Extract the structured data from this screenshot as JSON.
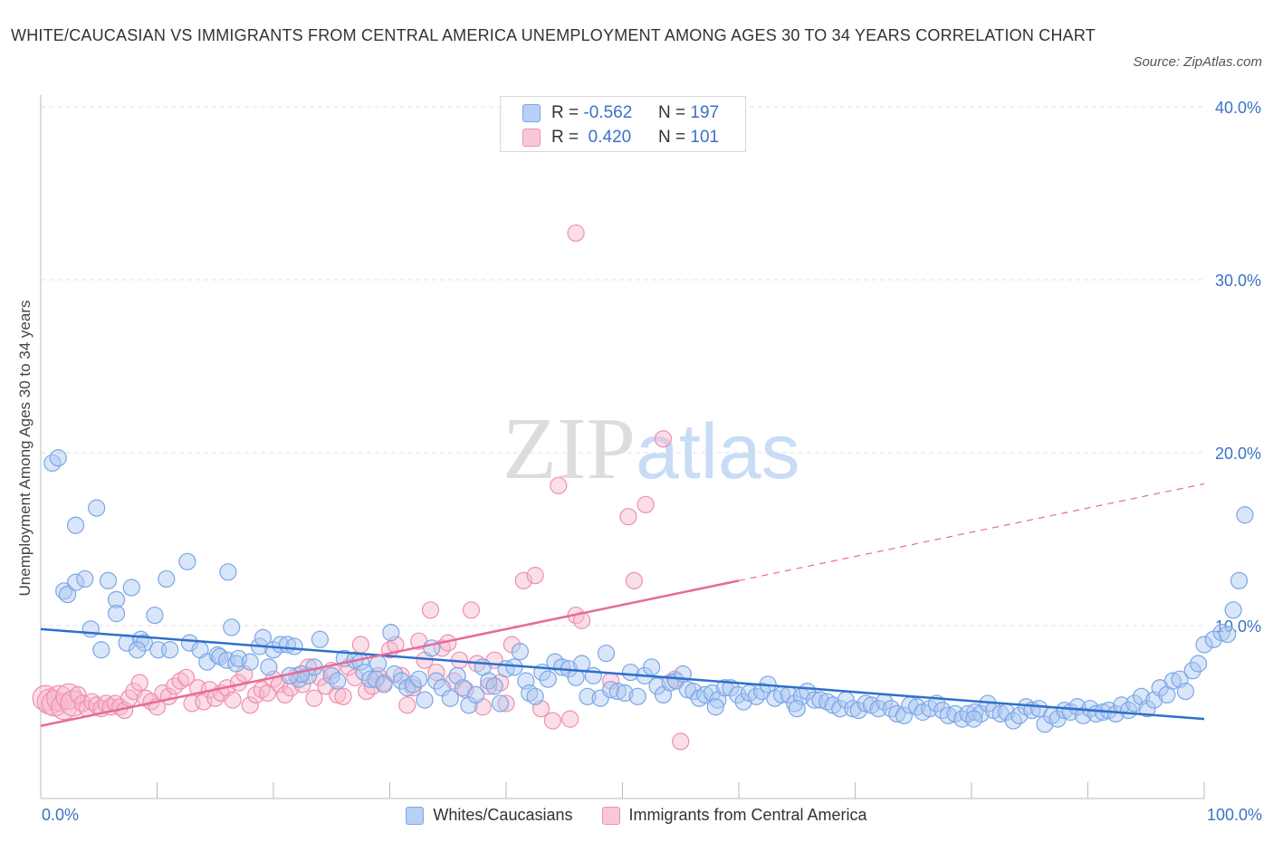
{
  "title": "WHITE/CAUCASIAN VS IMMIGRANTS FROM CENTRAL AMERICA UNEMPLOYMENT AMONG AGES 30 TO 34 YEARS CORRELATION CHART",
  "source": "Source: ZipAtlas.com",
  "watermark": {
    "part1": "ZIP",
    "part2": "atlas"
  },
  "colors": {
    "blue_fill": "#aac7f2",
    "blue_stroke": "#7aa6e6",
    "blue_line": "#2f6fca",
    "pink_fill": "#f7b8cb",
    "pink_stroke": "#ee8fae",
    "pink_line": "#e86a94",
    "axis_text": "#3b72c8",
    "grid": "#e2e2e2"
  },
  "legend": {
    "rows": [
      {
        "r_label": "R =",
        "r_value": "-0.562",
        "n_label": "N =",
        "n_value": "197"
      },
      {
        "r_label": "R =",
        "r_value": "0.420",
        "n_label": "N =",
        "n_value": "101"
      }
    ]
  },
  "bottom_legend": [
    "Whites/Caucasians",
    "Immigrants from Central America"
  ],
  "chart_data": {
    "type": "scatter",
    "title": "WHITE/CAUCASIAN VS IMMIGRANTS FROM CENTRAL AMERICA UNEMPLOYMENT AMONG AGES 30 TO 34 YEARS CORRELATION CHART",
    "xlabel": "",
    "ylabel": "Unemployment Among Ages 30 to 34 years",
    "xlim": [
      0,
      100
    ],
    "ylim": [
      0,
      40
    ],
    "x_tick_labels": [
      "0.0%",
      "100.0%"
    ],
    "y_ticks": [
      10,
      20,
      30,
      40
    ],
    "y_tick_labels": [
      "10.0%",
      "20.0%",
      "30.0%",
      "40.0%"
    ],
    "grid": true,
    "legend_position": "top-center",
    "series": [
      {
        "name": "Whites/Caucasians",
        "r": -0.562,
        "n": 197,
        "trend": {
          "x0": 0,
          "y0": 9.8,
          "x1": 100,
          "y1": 4.6
        },
        "points": [
          [
            1,
            19.4
          ],
          [
            1.5,
            19.7
          ],
          [
            3,
            15.8
          ],
          [
            4.8,
            16.8
          ],
          [
            2,
            12
          ],
          [
            2.3,
            11.8
          ],
          [
            3,
            12.5
          ],
          [
            3.8,
            12.7
          ],
          [
            5.8,
            12.6
          ],
          [
            7.8,
            12.2
          ],
          [
            6.5,
            11.5
          ],
          [
            6.5,
            10.7
          ],
          [
            9.8,
            10.6
          ],
          [
            4.3,
            9.8
          ],
          [
            5.2,
            8.6
          ],
          [
            7.4,
            9.0
          ],
          [
            8.6,
            9.2
          ],
          [
            8.9,
            9.0
          ],
          [
            8.3,
            8.6
          ],
          [
            10.1,
            8.6
          ],
          [
            11.1,
            8.6
          ],
          [
            12.8,
            9.0
          ],
          [
            13.7,
            8.6
          ],
          [
            14.3,
            7.9
          ],
          [
            15.2,
            8.3
          ],
          [
            15.4,
            8.2
          ],
          [
            16.4,
            9.9
          ],
          [
            16.0,
            8.0
          ],
          [
            16.8,
            7.8
          ],
          [
            17.0,
            8.1
          ],
          [
            16.1,
            13.1
          ],
          [
            12.6,
            13.7
          ],
          [
            10.8,
            12.7
          ],
          [
            18.0,
            7.9
          ],
          [
            18.8,
            8.8
          ],
          [
            19.1,
            9.3
          ],
          [
            19.6,
            7.6
          ],
          [
            20.0,
            8.6
          ],
          [
            20.6,
            8.9
          ],
          [
            21.2,
            8.9
          ],
          [
            21.8,
            8.8
          ],
          [
            22.2,
            6.9
          ],
          [
            23.0,
            7.1
          ],
          [
            23.5,
            7.6
          ],
          [
            22.4,
            7.2
          ],
          [
            21.4,
            7.1
          ],
          [
            24.0,
            9.2
          ],
          [
            25.0,
            7.1
          ],
          [
            25.5,
            6.8
          ],
          [
            26.1,
            8.1
          ],
          [
            27.0,
            8.0
          ],
          [
            27.5,
            7.9
          ],
          [
            27.8,
            7.3
          ],
          [
            28.3,
            6.9
          ],
          [
            28.8,
            6.9
          ],
          [
            29.0,
            7.8
          ],
          [
            29.5,
            6.6
          ],
          [
            30.1,
            9.6
          ],
          [
            30.4,
            7.2
          ],
          [
            31.0,
            6.8
          ],
          [
            31.5,
            6.4
          ],
          [
            32.0,
            6.6
          ],
          [
            32.5,
            6.9
          ],
          [
            33.0,
            5.7
          ],
          [
            33.6,
            8.7
          ],
          [
            34.0,
            6.8
          ],
          [
            34.5,
            6.4
          ],
          [
            35.2,
            5.8
          ],
          [
            35.8,
            7.1
          ],
          [
            36.3,
            6.4
          ],
          [
            36.8,
            5.4
          ],
          [
            37.4,
            6.0
          ],
          [
            38.0,
            7.6
          ],
          [
            38.5,
            6.8
          ],
          [
            39.0,
            6.5
          ],
          [
            39.5,
            5.5
          ],
          [
            40.0,
            7.5
          ],
          [
            40.7,
            7.6
          ],
          [
            41.2,
            8.5
          ],
          [
            41.7,
            6.8
          ],
          [
            42.0,
            6.1
          ],
          [
            42.5,
            5.9
          ],
          [
            43.1,
            7.3
          ],
          [
            43.6,
            6.9
          ],
          [
            44.2,
            7.9
          ],
          [
            44.8,
            7.6
          ],
          [
            45.4,
            7.5
          ],
          [
            46.0,
            7.0
          ],
          [
            46.5,
            7.8
          ],
          [
            47.0,
            5.9
          ],
          [
            47.5,
            7.1
          ],
          [
            48.1,
            5.8
          ],
          [
            48.6,
            8.4
          ],
          [
            49.0,
            6.3
          ],
          [
            49.6,
            6.2
          ],
          [
            50.2,
            6.1
          ],
          [
            50.7,
            7.3
          ],
          [
            51.3,
            5.9
          ],
          [
            51.9,
            7.1
          ],
          [
            52.5,
            7.6
          ],
          [
            53.0,
            6.5
          ],
          [
            53.5,
            6.0
          ],
          [
            54.1,
            6.7
          ],
          [
            54.6,
            6.8
          ],
          [
            55.2,
            7.2
          ],
          [
            55.6,
            6.3
          ],
          [
            56.1,
            6.2
          ],
          [
            56.6,
            5.8
          ],
          [
            57.1,
            6.0
          ],
          [
            57.7,
            6.1
          ],
          [
            58.2,
            5.7
          ],
          [
            58.8,
            6.4
          ],
          [
            59.3,
            6.4
          ],
          [
            59.9,
            6.0
          ],
          [
            60.4,
            5.6
          ],
          [
            60.9,
            6.1
          ],
          [
            61.5,
            5.9
          ],
          [
            62.0,
            6.2
          ],
          [
            62.5,
            6.6
          ],
          [
            63.1,
            5.8
          ],
          [
            63.7,
            6.0
          ],
          [
            64.3,
            6.0
          ],
          [
            64.8,
            5.5
          ],
          [
            65.4,
            5.9
          ],
          [
            65.9,
            6.2
          ],
          [
            66.5,
            5.7
          ],
          [
            67.0,
            5.7
          ],
          [
            67.6,
            5.6
          ],
          [
            68.1,
            5.4
          ],
          [
            68.7,
            5.2
          ],
          [
            69.2,
            5.7
          ],
          [
            69.8,
            5.2
          ],
          [
            70.3,
            5.1
          ],
          [
            70.9,
            5.5
          ],
          [
            71.4,
            5.4
          ],
          [
            72.0,
            5.2
          ],
          [
            72.5,
            5.6
          ],
          [
            73.1,
            5.2
          ],
          [
            73.6,
            4.9
          ],
          [
            74.2,
            4.8
          ],
          [
            74.7,
            5.4
          ],
          [
            75.3,
            5.3
          ],
          [
            75.8,
            5.0
          ],
          [
            76.4,
            5.2
          ],
          [
            77.0,
            5.5
          ],
          [
            77.5,
            5.1
          ],
          [
            78.0,
            4.8
          ],
          [
            78.6,
            4.9
          ],
          [
            79.2,
            4.6
          ],
          [
            79.7,
            4.9
          ],
          [
            80.3,
            5.0
          ],
          [
            80.8,
            4.9
          ],
          [
            81.4,
            5.5
          ],
          [
            81.9,
            5.1
          ],
          [
            82.5,
            4.9
          ],
          [
            83.0,
            5.0
          ],
          [
            83.6,
            4.5
          ],
          [
            84.1,
            4.8
          ],
          [
            84.7,
            5.3
          ],
          [
            85.2,
            5.1
          ],
          [
            85.8,
            5.2
          ],
          [
            86.3,
            4.3
          ],
          [
            86.9,
            4.8
          ],
          [
            87.4,
            4.6
          ],
          [
            88.0,
            5.1
          ],
          [
            88.5,
            5.0
          ],
          [
            89.1,
            5.3
          ],
          [
            89.6,
            4.8
          ],
          [
            90.2,
            5.2
          ],
          [
            90.7,
            4.9
          ],
          [
            91.3,
            5.0
          ],
          [
            91.8,
            5.1
          ],
          [
            92.4,
            4.9
          ],
          [
            92.9,
            5.4
          ],
          [
            93.5,
            5.1
          ],
          [
            94.0,
            5.5
          ],
          [
            94.6,
            5.9
          ],
          [
            95.1,
            5.2
          ],
          [
            95.7,
            5.7
          ],
          [
            96.2,
            6.4
          ],
          [
            96.8,
            6.0
          ],
          [
            97.3,
            6.8
          ],
          [
            97.9,
            6.9
          ],
          [
            98.4,
            6.2
          ],
          [
            99.0,
            7.4
          ],
          [
            99.5,
            7.8
          ],
          [
            100.0,
            8.9
          ],
          [
            100.8,
            9.2
          ],
          [
            101.5,
            9.6
          ],
          [
            102.0,
            9.5
          ],
          [
            102.5,
            10.9
          ],
          [
            103.0,
            12.6
          ],
          [
            103.5,
            16.4
          ],
          [
            80.2,
            4.6
          ],
          [
            65.0,
            5.2
          ],
          [
            58.0,
            5.3
          ]
        ]
      },
      {
        "name": "Immigrants from Central America",
        "r": 0.42,
        "n": 101,
        "trend": {
          "x0": 0,
          "y0": 4.2,
          "x1": 60,
          "y1": 12.6,
          "dash_x1": 100,
          "dash_y1": 18.2
        },
        "points": [
          [
            0.4,
            5.8
          ],
          [
            0.8,
            5.6
          ],
          [
            1.2,
            5.5
          ],
          [
            1.6,
            5.8
          ],
          [
            2.0,
            5.3
          ],
          [
            2.4,
            5.9
          ],
          [
            2.8,
            5.5
          ],
          [
            3.2,
            6.0
          ],
          [
            3.6,
            5.5
          ],
          [
            4.0,
            5.2
          ],
          [
            4.4,
            5.6
          ],
          [
            4.8,
            5.4
          ],
          [
            5.2,
            5.2
          ],
          [
            5.6,
            5.5
          ],
          [
            6.0,
            5.3
          ],
          [
            6.4,
            5.5
          ],
          [
            6.8,
            5.3
          ],
          [
            7.2,
            5.1
          ],
          [
            7.6,
            5.8
          ],
          [
            8.0,
            6.2
          ],
          [
            8.5,
            6.7
          ],
          [
            9.0,
            5.8
          ],
          [
            9.5,
            5.6
          ],
          [
            10.0,
            5.3
          ],
          [
            10.5,
            6.1
          ],
          [
            11.0,
            5.9
          ],
          [
            11.5,
            6.5
          ],
          [
            12.0,
            6.8
          ],
          [
            12.5,
            7.0
          ],
          [
            13.0,
            5.5
          ],
          [
            13.5,
            6.4
          ],
          [
            14.0,
            5.6
          ],
          [
            14.5,
            6.3
          ],
          [
            15.0,
            5.8
          ],
          [
            15.5,
            6.1
          ],
          [
            16.0,
            6.4
          ],
          [
            16.5,
            5.7
          ],
          [
            17.0,
            6.7
          ],
          [
            17.5,
            7.2
          ],
          [
            18.0,
            5.4
          ],
          [
            18.5,
            6.0
          ],
          [
            19.0,
            6.3
          ],
          [
            19.5,
            6.1
          ],
          [
            20.0,
            6.9
          ],
          [
            20.5,
            6.6
          ],
          [
            21.0,
            6.0
          ],
          [
            21.5,
            6.4
          ],
          [
            22.0,
            7.1
          ],
          [
            22.5,
            6.6
          ],
          [
            23.0,
            7.6
          ],
          [
            23.5,
            5.8
          ],
          [
            24.0,
            7.0
          ],
          [
            24.5,
            6.5
          ],
          [
            25.0,
            7.4
          ],
          [
            25.5,
            6.0
          ],
          [
            26.0,
            5.9
          ],
          [
            26.5,
            7.6
          ],
          [
            27.0,
            7.0
          ],
          [
            27.5,
            8.9
          ],
          [
            28.0,
            6.2
          ],
          [
            28.5,
            6.5
          ],
          [
            29.0,
            7.1
          ],
          [
            29.5,
            6.7
          ],
          [
            30.0,
            8.6
          ],
          [
            30.5,
            8.9
          ],
          [
            31.0,
            7.1
          ],
          [
            31.5,
            5.4
          ],
          [
            32.0,
            6.4
          ],
          [
            32.5,
            9.1
          ],
          [
            33.0,
            8.0
          ],
          [
            33.5,
            10.9
          ],
          [
            34.0,
            7.3
          ],
          [
            34.5,
            8.7
          ],
          [
            35.0,
            9.0
          ],
          [
            35.5,
            6.8
          ],
          [
            36.0,
            8.0
          ],
          [
            36.5,
            6.3
          ],
          [
            37.0,
            10.9
          ],
          [
            37.5,
            7.8
          ],
          [
            38.0,
            5.3
          ],
          [
            38.5,
            6.5
          ],
          [
            39.0,
            8.0
          ],
          [
            39.5,
            6.7
          ],
          [
            40.0,
            5.5
          ],
          [
            40.5,
            8.9
          ],
          [
            41.5,
            12.6
          ],
          [
            42.5,
            12.9
          ],
          [
            43.0,
            5.2
          ],
          [
            44.0,
            4.5
          ],
          [
            44.5,
            18.1
          ],
          [
            45.5,
            4.6
          ],
          [
            46.0,
            10.6
          ],
          [
            46.5,
            10.3
          ],
          [
            49.0,
            6.8
          ],
          [
            50.5,
            16.3
          ],
          [
            52.0,
            17.0
          ],
          [
            51.0,
            12.6
          ],
          [
            53.5,
            20.8
          ],
          [
            54.5,
            6.9
          ],
          [
            55.0,
            3.3
          ],
          [
            46.0,
            32.7
          ]
        ]
      }
    ]
  }
}
